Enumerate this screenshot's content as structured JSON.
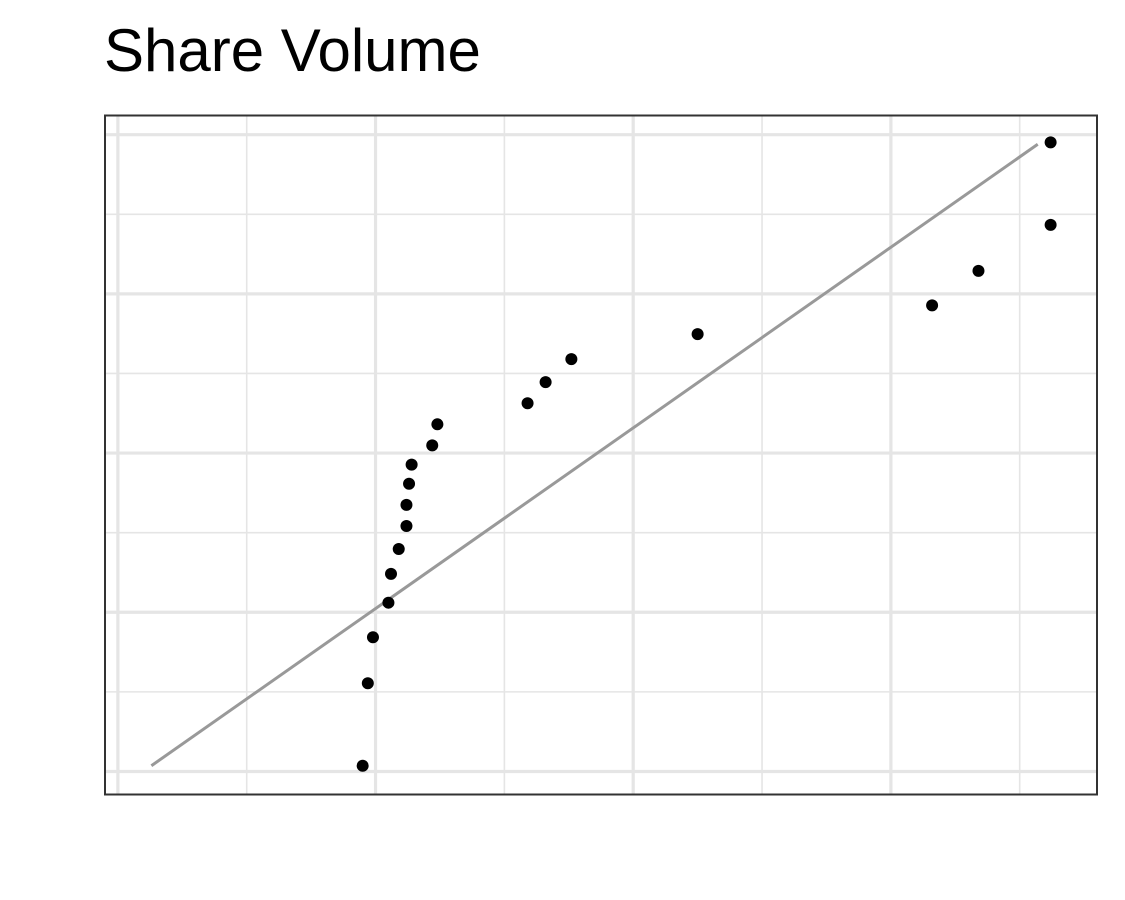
{
  "chart_data": {
    "type": "scatter",
    "title": "Share Volume",
    "xlabel": "",
    "ylabel": "",
    "xlim": [
      -1.85,
      2.0
    ],
    "ylim": [
      -1.82,
      1.72
    ],
    "grid": true,
    "x_major_gridlines": [
      -1.8,
      -0.8,
      0.2,
      1.2
    ],
    "x_minor_gridlines": [
      -1.3,
      -0.3,
      0.7,
      1.7
    ],
    "y_major_gridlines": [
      -1.7,
      -0.87,
      -0.04,
      0.79,
      1.62
    ],
    "y_minor_gridlines": [
      -1.285,
      -0.455,
      0.375,
      1.205
    ],
    "points": [
      {
        "x": -0.85,
        "y": -1.67
      },
      {
        "x": -0.83,
        "y": -1.24
      },
      {
        "x": -0.81,
        "y": -1.0
      },
      {
        "x": -0.75,
        "y": -0.82
      },
      {
        "x": -0.74,
        "y": -0.67
      },
      {
        "x": -0.71,
        "y": -0.54
      },
      {
        "x": -0.68,
        "y": -0.42
      },
      {
        "x": -0.68,
        "y": -0.31
      },
      {
        "x": -0.67,
        "y": -0.2
      },
      {
        "x": -0.66,
        "y": -0.1
      },
      {
        "x": -0.58,
        "y": 0.0
      },
      {
        "x": -0.56,
        "y": 0.11
      },
      {
        "x": -0.21,
        "y": 0.22
      },
      {
        "x": -0.14,
        "y": 0.33
      },
      {
        "x": -0.04,
        "y": 0.45
      },
      {
        "x": 0.45,
        "y": 0.58
      },
      {
        "x": 1.36,
        "y": 0.73
      },
      {
        "x": 1.54,
        "y": 0.91
      },
      {
        "x": 1.82,
        "y": 1.15
      },
      {
        "x": 1.82,
        "y": 1.58
      }
    ],
    "reference_line": {
      "x": [
        -1.67,
        1.77
      ],
      "y": [
        -1.67,
        1.57
      ]
    },
    "colors": {
      "points": "#000000",
      "reference_line": "#999999",
      "grid": "#e5e5e5",
      "panel_border": "#333333"
    }
  }
}
